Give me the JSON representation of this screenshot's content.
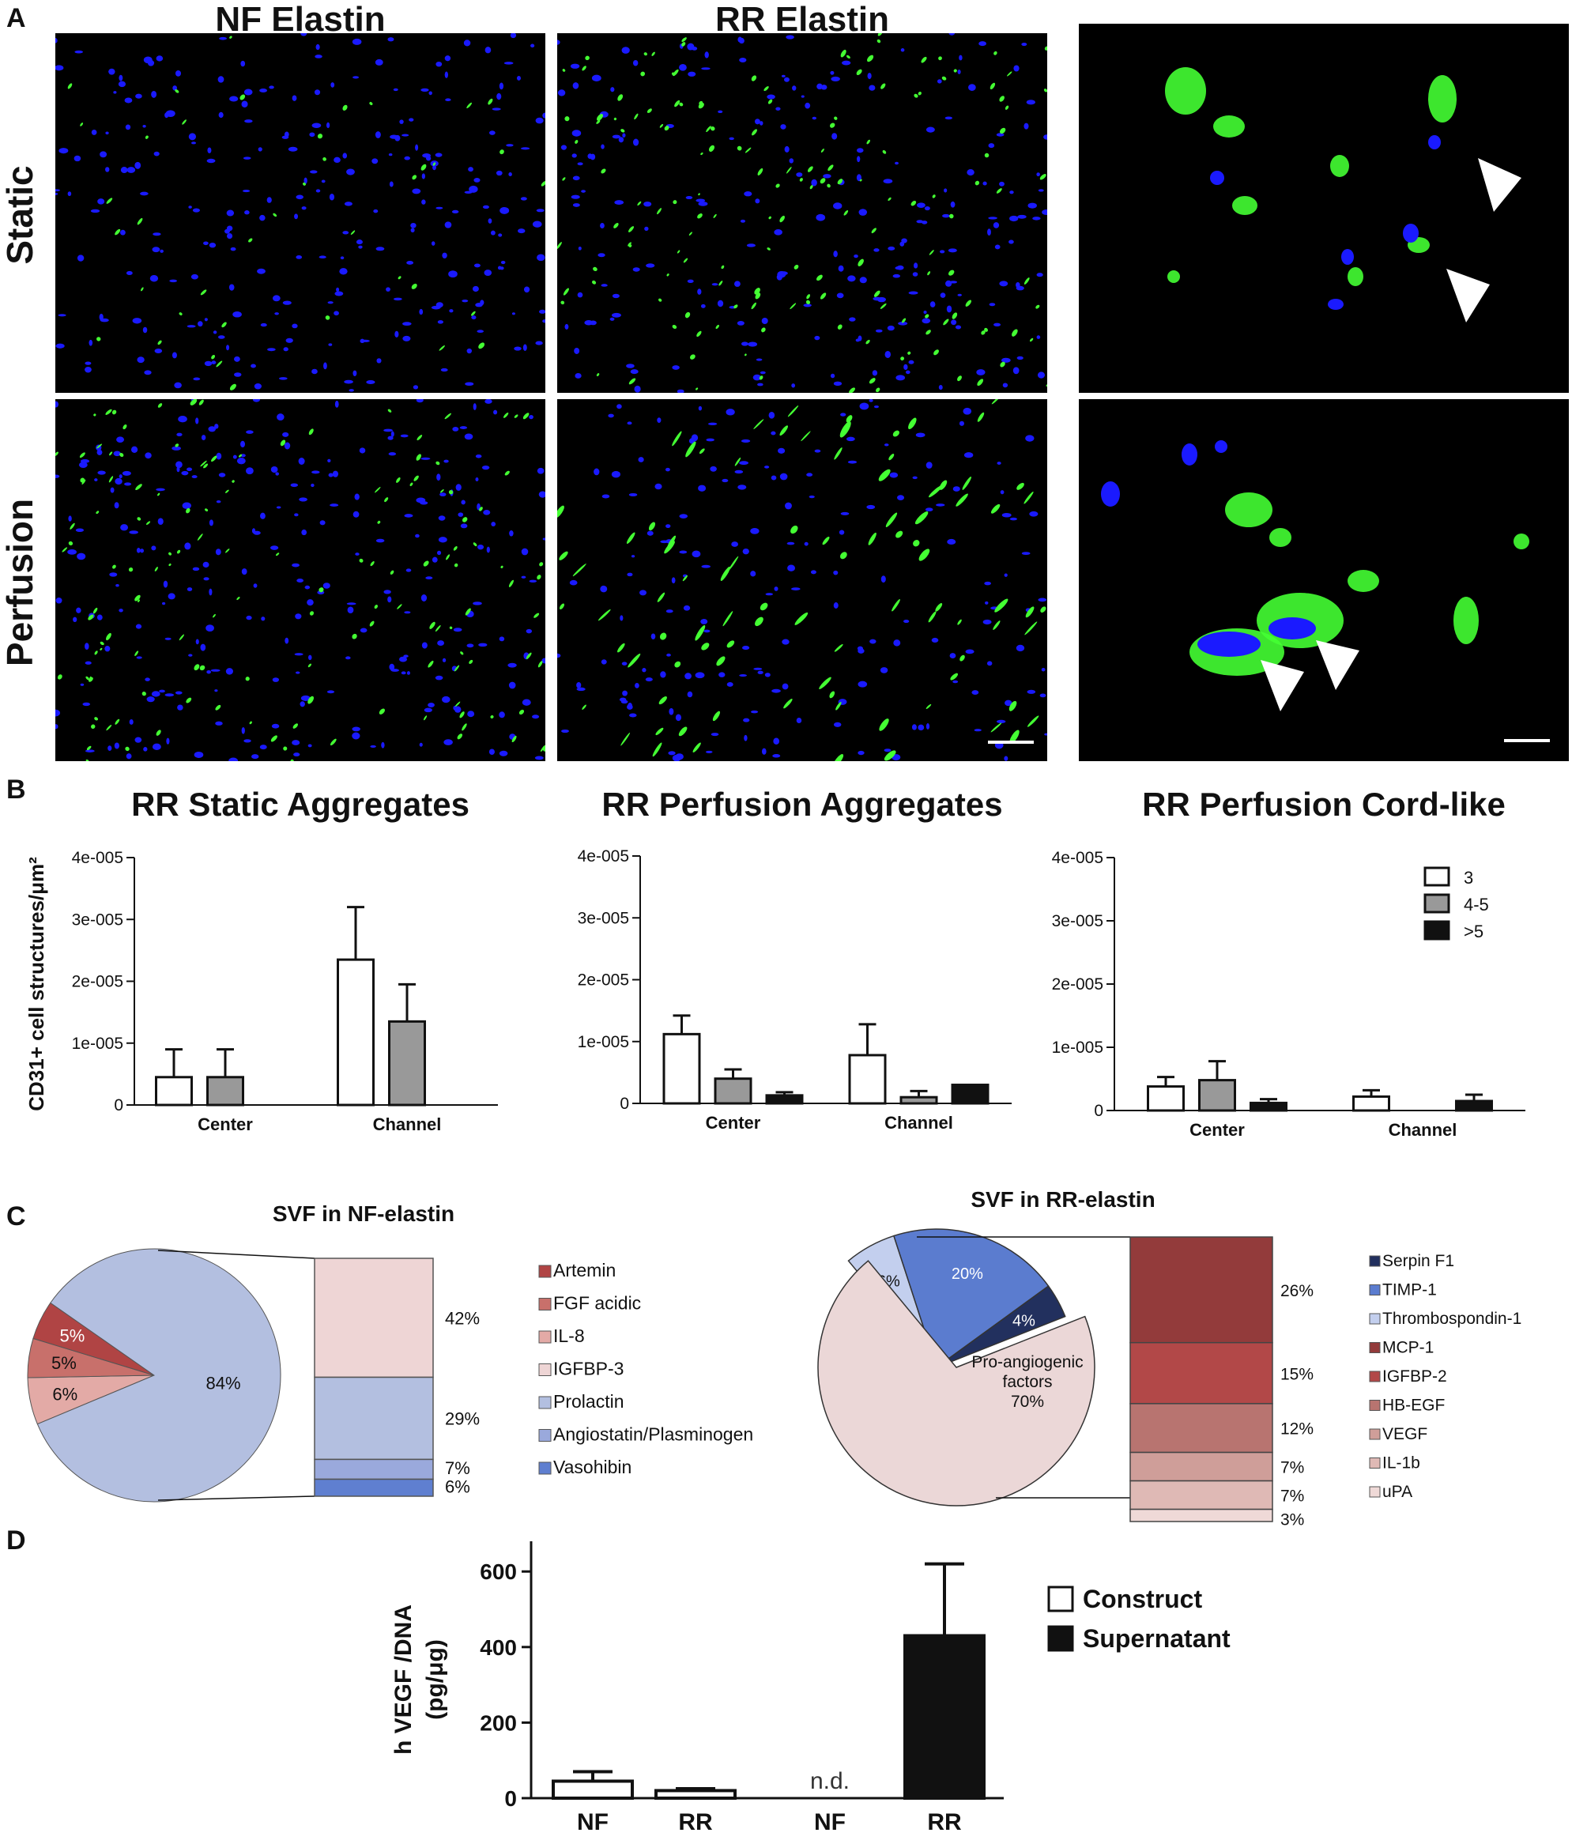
{
  "panel_labels": {
    "A": "A",
    "B": "B",
    "C": "C",
    "D": "D"
  },
  "panel_a": {
    "columns": [
      "NF Elastin",
      "RR Elastin"
    ],
    "rows": [
      "Static",
      "Perfusion"
    ],
    "colors": {
      "nuclei": "#1a1aff",
      "cd31": "#44ff33",
      "background": "#000000"
    }
  },
  "panel_b": {
    "ylabel": "CD31+ cell  structures/μm²",
    "legend": [
      "3",
      "4-5",
      ">5"
    ],
    "colors": {
      "3": "#ffffff",
      "4-5": "#999999",
      ">5": "#111111"
    },
    "chart_data": [
      {
        "type": "bar",
        "title": "RR Static Aggregates",
        "categories": [
          "Center",
          "Channel"
        ],
        "ylim": [
          0,
          4e-05
        ],
        "yticks": [
          "0",
          "1e-005",
          "2e-005",
          "3e-005",
          "4e-005"
        ],
        "series": [
          {
            "name": "3",
            "values": [
              4.5e-06,
              2.35e-05
            ],
            "errors": [
              4.5e-06,
              8.5e-06
            ]
          },
          {
            "name": "4-5",
            "values": [
              4.5e-06,
              1.35e-05
            ],
            "errors": [
              4.5e-06,
              6e-06
            ]
          },
          {
            "name": ">5",
            "values": [
              0,
              0
            ],
            "errors": [
              0,
              0
            ]
          }
        ]
      },
      {
        "type": "bar",
        "title": "RR Perfusion Aggregates",
        "categories": [
          "Center",
          "Channel"
        ],
        "ylim": [
          0,
          4e-05
        ],
        "yticks": [
          "0",
          "1e-005",
          "2e-005",
          "3e-005",
          "4e-005"
        ],
        "series": [
          {
            "name": "3",
            "values": [
              1.12e-05,
              7.8e-06
            ],
            "errors": [
              3e-06,
              5e-06
            ]
          },
          {
            "name": "4-5",
            "values": [
              4e-06,
              1e-06
            ],
            "errors": [
              1.5e-06,
              1e-06
            ]
          },
          {
            "name": ">5",
            "values": [
              1.3e-06,
              3e-06
            ],
            "errors": [
              5e-07,
              0
            ]
          }
        ]
      },
      {
        "type": "bar",
        "title": "RR Perfusion Cord-like",
        "categories": [
          "Center",
          "Channel"
        ],
        "ylim": [
          0,
          4e-05
        ],
        "yticks": [
          "0",
          "1e-005",
          "2e-005",
          "3e-005",
          "4e-005"
        ],
        "series": [
          {
            "name": "3",
            "values": [
              3.8e-06,
              2.2e-06
            ],
            "errors": [
              1.5e-06,
              1e-06
            ]
          },
          {
            "name": "4-5",
            "values": [
              4.8e-06,
              0
            ],
            "errors": [
              3e-06,
              0
            ]
          },
          {
            "name": ">5",
            "values": [
              1.2e-06,
              1.5e-06
            ],
            "errors": [
              6e-07,
              1e-06
            ]
          }
        ]
      }
    ]
  },
  "panel_c": {
    "chart_data": [
      {
        "type": "pie",
        "title": "SVF in NF-elastin",
        "slices": [
          {
            "label": "6%",
            "value": 6,
            "color": "#e3aaa6"
          },
          {
            "label": "5%",
            "value": 5,
            "color": "#c8706b"
          },
          {
            "label": "5%",
            "value": 5,
            "color": "#b04444"
          },
          {
            "label": "84%",
            "value": 84,
            "color": "#b3bfe0"
          }
        ],
        "stack": [
          {
            "label": "42%",
            "value": 42,
            "color": "#eed5d5"
          },
          {
            "label": "29%",
            "value": 29,
            "color": "#b3bfe0"
          },
          {
            "label": "7%",
            "value": 7,
            "color": "#9aa9dc"
          },
          {
            "label": "6%",
            "value": 6,
            "color": "#5f7fd0"
          }
        ],
        "legend": [
          {
            "label": "Artemin",
            "color": "#b04444"
          },
          {
            "label": "FGF acidic",
            "color": "#c8706b"
          },
          {
            "label": "IL-8",
            "color": "#e3aaa6"
          },
          {
            "label": "IGFBP-3",
            "color": "#eed5d5"
          },
          {
            "label": "Prolactin",
            "color": "#b3bfe0"
          },
          {
            "label": "Angiostatin/Plasminogen",
            "color": "#9aa9dc"
          },
          {
            "label": "Vasohibin",
            "color": "#5f7fd0"
          }
        ]
      },
      {
        "type": "pie",
        "title": "SVF in RR-elastin",
        "center_label": [
          "Pro-angiogenic",
          "factors",
          "70%"
        ],
        "slices": [
          {
            "label": "6%",
            "value": 6,
            "color": "#c3cfee"
          },
          {
            "label": "20%",
            "value": 20,
            "color": "#5b7ccf"
          },
          {
            "label": "4%",
            "value": 4,
            "color": "#22305e"
          },
          {
            "label": "70%",
            "value": 70,
            "color": "#ebd7d7"
          }
        ],
        "stack": [
          {
            "label": "26%",
            "value": 26,
            "color": "#933b3b"
          },
          {
            "label": "15%",
            "value": 15,
            "color": "#b24848"
          },
          {
            "label": "12%",
            "value": 12,
            "color": "#b87470"
          },
          {
            "label": "7%",
            "value": 7,
            "color": "#cf9e99"
          },
          {
            "label": "7%",
            "value": 7,
            "color": "#dfb9b5"
          },
          {
            "label": "3%",
            "value": 3,
            "color": "#efd9d7"
          }
        ],
        "legend": [
          {
            "label": "Serpin F1",
            "color": "#22305e"
          },
          {
            "label": "TIMP-1",
            "color": "#5b7ccf"
          },
          {
            "label": "Thrombospondin-1",
            "color": "#c3cfee"
          },
          {
            "label": "MCP-1",
            "color": "#933b3b"
          },
          {
            "label": "IGFBP-2",
            "color": "#b24848"
          },
          {
            "label": "HB-EGF",
            "color": "#b87470"
          },
          {
            "label": "VEGF",
            "color": "#cf9e99"
          },
          {
            "label": "IL-1b",
            "color": "#dfb9b5"
          },
          {
            "label": "uPA",
            "color": "#efd9d7"
          }
        ]
      }
    ]
  },
  "panel_d": {
    "chart_data": {
      "type": "bar",
      "ylabel_lines": [
        "h VEGF /DNA",
        "(pg/μg)"
      ],
      "categories": [
        "NF",
        "RR",
        "NF",
        "RR"
      ],
      "values": [
        45,
        20,
        null,
        430
      ],
      "errors": [
        25,
        5,
        0,
        190
      ],
      "fills": [
        "#ffffff",
        "#ffffff",
        "#ffffff",
        "#111111"
      ],
      "annotations": [
        "",
        "",
        "n.d.",
        ""
      ],
      "ylim": [
        0,
        680
      ],
      "yticks": [
        0,
        200,
        400,
        600
      ],
      "legend": [
        {
          "label": "Construct",
          "color": "#ffffff"
        },
        {
          "label": "Supernatant",
          "color": "#111111"
        }
      ]
    }
  }
}
